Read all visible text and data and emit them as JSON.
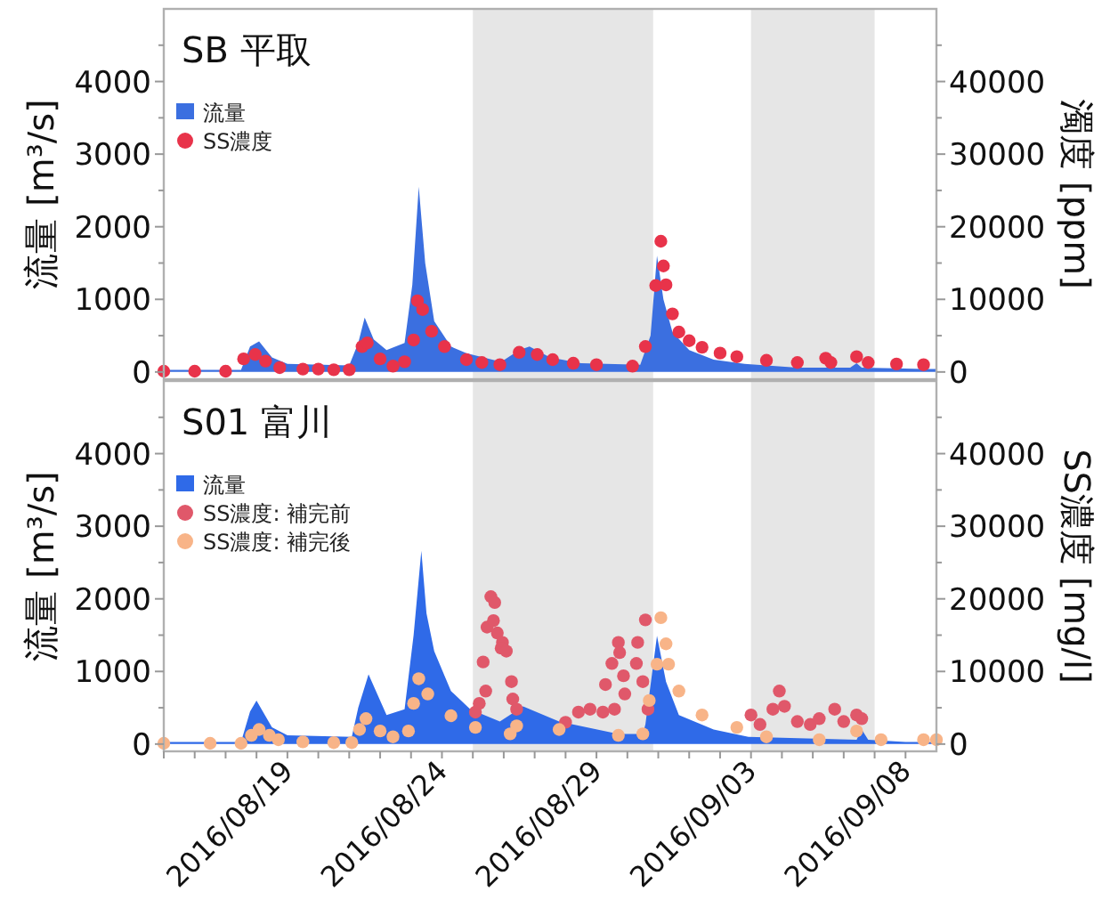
{
  "chart_data": [
    {
      "type": "area",
      "title": "SB 平取",
      "ylabel": "流量 [m³/s]",
      "y2label": "濁度 [ppm]",
      "legend": "top left",
      "tick_labels": "y",
      "xlim": [
        "2016-08-15T00:00",
        "2016-09-09T00:00"
      ],
      "ylim": [
        -100,
        5000
      ],
      "yticks": [
        0,
        {
          "value": 500,
          "label": null
        },
        1000,
        {
          "value": 1500,
          "label": null
        },
        2000,
        {
          "value": 2500,
          "label": null
        },
        3000,
        {
          "value": 3500,
          "label": null
        },
        4000,
        {
          "value": 4500,
          "label": null
        }
      ],
      "y2lim": [
        -1000,
        50000
      ],
      "y2ticks": [
        0,
        {
          "value": 5000,
          "label": null
        },
        10000,
        {
          "value": 15000,
          "label": null
        },
        20000,
        {
          "value": 25000,
          "label": null
        },
        30000,
        {
          "value": 35000,
          "label": null
        },
        40000,
        {
          "value": 45000,
          "label": null
        }
      ],
      "bands": [
        {
          "axis": "x",
          "from": "2016-08-25T00:00",
          "to": "2016-08-30T20:00",
          "color": "#e6e6e6"
        },
        {
          "axis": "x",
          "from": "2016-09-03T00:00",
          "to": "2016-09-07T00:00",
          "color": "#e6e6e6"
        }
      ],
      "series": [
        {
          "name": "流量",
          "color": "#3b6fe0",
          "x": [
            "2016-08-15T00:00",
            "2016-08-17T12:00",
            "2016-08-17T19:00",
            "2016-08-18T02:00",
            "2016-08-18T12:00",
            "2016-08-19T00:00",
            "2016-08-21T00:00",
            "2016-08-21T07:00",
            "2016-08-21T12:00",
            "2016-08-21T19:00",
            "2016-08-22T05:00",
            "2016-08-22T19:00",
            "2016-08-23T01:00",
            "2016-08-23T06:00",
            "2016-08-23T11:00",
            "2016-08-23T18:00",
            "2016-08-24T07:00",
            "2016-08-24T19:00",
            "2016-08-25T22:00",
            "2016-08-26T12:00",
            "2016-08-26T20:00",
            "2016-08-27T12:00",
            "2016-08-28T12:00",
            "2016-08-30T10:00",
            "2016-08-30T18:00",
            "2016-08-30T23:00",
            "2016-08-31T04:00",
            "2016-08-31T11:00",
            "2016-09-01T00:00",
            "2016-09-01T19:00",
            "2016-09-02T19:00",
            "2016-09-04T12:00",
            "2016-09-06T05:00",
            "2016-09-06T10:00",
            "2016-09-06T14:00",
            "2016-09-08T14:00",
            "2016-09-09T00:00"
          ],
          "values": [
            30,
            30,
            350,
            420,
            200,
            110,
            90,
            400,
            750,
            450,
            300,
            400,
            1200,
            2550,
            1500,
            700,
            350,
            260,
            140,
            300,
            350,
            200,
            120,
            100,
            500,
            1600,
            1000,
            550,
            300,
            170,
            110,
            60,
            60,
            120,
            60,
            40,
            40
          ]
        },
        {
          "name": "SS濃度",
          "type": "scatter",
          "marker": "circle",
          "axis": "y2",
          "color": "#e8334a",
          "x": [
            "2016-08-15T00:00",
            "2016-08-16T00:00",
            "2016-08-17T00:00",
            "2016-08-17T14:00",
            "2016-08-17T23:00",
            "2016-08-18T07:00",
            "2016-08-18T18:00",
            "2016-08-19T12:00",
            "2016-08-20T00:00",
            "2016-08-20T12:00",
            "2016-08-21T00:00",
            "2016-08-21T10:00",
            "2016-08-21T14:00",
            "2016-08-22T00:00",
            "2016-08-22T10:00",
            "2016-08-22T19:00",
            "2016-08-23T02:00",
            "2016-08-23T05:00",
            "2016-08-23T09:00",
            "2016-08-23T16:00",
            "2016-08-24T02:00",
            "2016-08-24T19:00",
            "2016-08-25T07:00",
            "2016-08-25T21:00",
            "2016-08-26T12:00",
            "2016-08-27T02:00",
            "2016-08-27T14:00",
            "2016-08-28T06:00",
            "2016-08-29T00:00",
            "2016-08-30T04:00",
            "2016-08-30T14:00",
            "2016-08-30T22:00",
            "2016-08-31T02:00",
            "2016-08-31T04:00",
            "2016-08-31T06:00",
            "2016-08-31T11:00",
            "2016-08-31T16:00",
            "2016-09-01T00:00",
            "2016-09-01T10:00",
            "2016-09-02T00:00",
            "2016-09-02T13:00",
            "2016-09-03T12:00",
            "2016-09-04T12:00",
            "2016-09-05T10:00",
            "2016-09-05T14:00",
            "2016-09-06T10:00",
            "2016-09-06T19:00",
            "2016-09-07T17:00",
            "2016-09-08T14:00"
          ],
          "values": [
            100,
            100,
            100,
            1800,
            2400,
            1500,
            600,
            400,
            400,
            300,
            300,
            3500,
            4000,
            1800,
            800,
            1400,
            4400,
            9800,
            8600,
            5600,
            3500,
            1700,
            1300,
            1000,
            2700,
            2400,
            1700,
            1200,
            1000,
            800,
            3500,
            11900,
            18000,
            14600,
            12000,
            8000,
            5500,
            4300,
            3400,
            2600,
            2100,
            1600,
            1300,
            1900,
            1300,
            2100,
            1300,
            1100,
            1000
          ]
        }
      ]
    },
    {
      "type": "area",
      "title": "S01 富川",
      "ylabel": "流量 [m³/s]",
      "y2label": "SS濃度 [mg/l]",
      "legend": "top left",
      "xlim": [
        "2016-08-15T00:00",
        "2016-09-09T00:00"
      ],
      "xticks": [
        {
          "value": "2016-08-15",
          "label": null
        },
        {
          "value": "2016-08-16",
          "label": null
        },
        {
          "value": "2016-08-17",
          "label": null
        },
        {
          "value": "2016-08-18",
          "label": null
        },
        {
          "value": "2016-08-19",
          "label": "2016/08/19"
        },
        {
          "value": "2016-08-20",
          "label": null
        },
        {
          "value": "2016-08-21",
          "label": null
        },
        {
          "value": "2016-08-22",
          "label": null
        },
        {
          "value": "2016-08-23",
          "label": null
        },
        {
          "value": "2016-08-24",
          "label": "2016/08/24"
        },
        {
          "value": "2016-08-25",
          "label": null
        },
        {
          "value": "2016-08-26",
          "label": null
        },
        {
          "value": "2016-08-27",
          "label": null
        },
        {
          "value": "2016-08-28",
          "label": null
        },
        {
          "value": "2016-08-29",
          "label": "2016/08/29"
        },
        {
          "value": "2016-08-30",
          "label": null
        },
        {
          "value": "2016-08-31",
          "label": null
        },
        {
          "value": "2016-09-01",
          "label": null
        },
        {
          "value": "2016-09-02",
          "label": null
        },
        {
          "value": "2016-09-03",
          "label": "2016/09/03"
        },
        {
          "value": "2016-09-04",
          "label": null
        },
        {
          "value": "2016-09-05",
          "label": null
        },
        {
          "value": "2016-09-06",
          "label": null
        },
        {
          "value": "2016-09-07",
          "label": null
        },
        {
          "value": "2016-09-08",
          "label": "2016/09/08"
        }
      ],
      "ylim": [
        -100,
        5000
      ],
      "yticks": [
        0,
        {
          "value": 500,
          "label": null
        },
        1000,
        {
          "value": 1500,
          "label": null
        },
        2000,
        {
          "value": 2500,
          "label": null
        },
        3000,
        {
          "value": 3500,
          "label": null
        },
        4000,
        {
          "value": 4500,
          "label": null
        }
      ],
      "y2lim": [
        -1000,
        50000
      ],
      "y2ticks": [
        0,
        {
          "value": 5000,
          "label": null
        },
        10000,
        {
          "value": 15000,
          "label": null
        },
        20000,
        {
          "value": 25000,
          "label": null
        },
        30000,
        {
          "value": 35000,
          "label": null
        },
        40000,
        {
          "value": 45000,
          "label": null
        }
      ],
      "bands": [
        {
          "axis": "x",
          "from": "2016-08-25T00:00",
          "to": "2016-08-30T20:00",
          "color": "#e6e6e6"
        },
        {
          "axis": "x",
          "from": "2016-09-03T00:00",
          "to": "2016-09-07T00:00",
          "color": "#e6e6e6"
        }
      ],
      "series": [
        {
          "name": "流量",
          "color": "#2f6ae8",
          "x": [
            "2016-08-15T00:00",
            "2016-08-17T12:00",
            "2016-08-17T19:00",
            "2016-08-18T00:00",
            "2016-08-18T12:00",
            "2016-08-19T00:00",
            "2016-08-21T02:00",
            "2016-08-21T07:00",
            "2016-08-21T15:00",
            "2016-08-22T05:00",
            "2016-08-22T19:00",
            "2016-08-23T02:00",
            "2016-08-23T08:00",
            "2016-08-23T12:00",
            "2016-08-23T18:00",
            "2016-08-24T07:00",
            "2016-08-24T22:00",
            "2016-08-25T21:00",
            "2016-08-26T15:00",
            "2016-08-27T19:00",
            "2016-08-29T17:00",
            "2016-08-30T12:00",
            "2016-08-30T14:00",
            "2016-08-30T23:00",
            "2016-08-31T06:00",
            "2016-08-31T16:00",
            "2016-09-01T19:00",
            "2016-09-02T22:00",
            "2016-09-06T10:00",
            "2016-09-06T14:00",
            "2016-09-06T19:00",
            "2016-09-08T00:00",
            "2016-09-09T00:00"
          ],
          "values": [
            30,
            30,
            450,
            600,
            230,
            120,
            100,
            500,
            960,
            400,
            480,
            1500,
            2660,
            1800,
            1280,
            730,
            480,
            310,
            520,
            310,
            140,
            140,
            270,
            1490,
            860,
            400,
            200,
            100,
            60,
            200,
            60,
            30,
            30
          ]
        },
        {
          "name": "SS濃度: 補完前",
          "type": "scatter",
          "marker": "circle",
          "axis": "y2",
          "color": "#e0586a",
          "x": [
            "2016-08-25T02:00",
            "2016-08-25T05:00",
            "2016-08-25T08:00",
            "2016-08-25T10:00",
            "2016-08-25T11:00",
            "2016-08-25T14:00",
            "2016-08-25T17:00",
            "2016-08-25T16:00",
            "2016-08-25T19:00",
            "2016-08-25T23:00",
            "2016-08-25T22:00",
            "2016-08-26T02:00",
            "2016-08-26T06:00",
            "2016-08-26T07:00",
            "2016-08-26T10:00",
            "2016-08-28T00:00",
            "2016-08-28T10:00",
            "2016-08-28T19:00",
            "2016-08-29T05:00",
            "2016-08-29T07:00",
            "2016-08-29T12:00",
            "2016-08-29T14:00",
            "2016-08-29T17:00",
            "2016-08-29T18:00",
            "2016-08-29T21:00",
            "2016-08-29T22:00",
            "2016-08-30T08:00",
            "2016-08-30T07:00",
            "2016-08-30T12:00",
            "2016-08-30T14:00",
            "2016-08-30T16:00",
            "2016-09-03T00:00",
            "2016-09-03T07:00",
            "2016-09-03T17:00",
            "2016-09-03T22:00",
            "2016-09-04T02:00",
            "2016-09-04T12:00",
            "2016-09-04T22:00",
            "2016-09-05T05:00",
            "2016-09-05T17:00",
            "2016-09-06T00:00",
            "2016-09-06T10:00",
            "2016-09-06T14:00"
          ],
          "values": [
            4400,
            5600,
            11300,
            7300,
            16100,
            20300,
            19500,
            17000,
            15300,
            14000,
            13200,
            12800,
            8600,
            6200,
            4800,
            3000,
            4400,
            4800,
            4400,
            8200,
            11100,
            4800,
            14000,
            12600,
            9400,
            6900,
            14000,
            11100,
            8600,
            17100,
            4800,
            4000,
            2700,
            4800,
            7300,
            5200,
            3100,
            2700,
            3500,
            4800,
            3100,
            4000,
            3500
          ]
        },
        {
          "name": "SS濃度: 補完後",
          "type": "scatter",
          "marker": "circle",
          "axis": "y2",
          "color": "#f8b488",
          "x": [
            "2016-08-15T00:00",
            "2016-08-16T12:00",
            "2016-08-17T12:00",
            "2016-08-17T20:00",
            "2016-08-18T02:00",
            "2016-08-18T10:00",
            "2016-08-18T17:00",
            "2016-08-19T12:00",
            "2016-08-20T12:00",
            "2016-08-21T02:00",
            "2016-08-21T08:00",
            "2016-08-21T13:00",
            "2016-08-22T00:00",
            "2016-08-22T10:00",
            "2016-08-22T22:00",
            "2016-08-23T02:00",
            "2016-08-23T06:00",
            "2016-08-23T13:00",
            "2016-08-24T07:00",
            "2016-08-25T02:00",
            "2016-08-26T05:00",
            "2016-08-26T10:00",
            "2016-08-27T19:00",
            "2016-08-29T17:00",
            "2016-08-30T12:00",
            "2016-08-30T17:00",
            "2016-08-30T23:00",
            "2016-08-31T02:00",
            "2016-08-31T06:00",
            "2016-08-31T08:00",
            "2016-08-31T16:00",
            "2016-09-01T10:00",
            "2016-09-02T13:00",
            "2016-09-03T12:00",
            "2016-09-05T05:00",
            "2016-09-06T10:00",
            "2016-09-07T05:00",
            "2016-09-08T14:00",
            "2016-09-09T00:00"
          ],
          "values": [
            100,
            100,
            100,
            1200,
            2000,
            1200,
            600,
            300,
            200,
            200,
            2000,
            3500,
            1800,
            1000,
            1800,
            5600,
            9000,
            6900,
            3900,
            2300,
            1400,
            2500,
            2000,
            1200,
            1400,
            6000,
            11000,
            17400,
            13800,
            11000,
            7300,
            4000,
            2300,
            1000,
            600,
            1800,
            600,
            600,
            600
          ]
        }
      ]
    }
  ]
}
